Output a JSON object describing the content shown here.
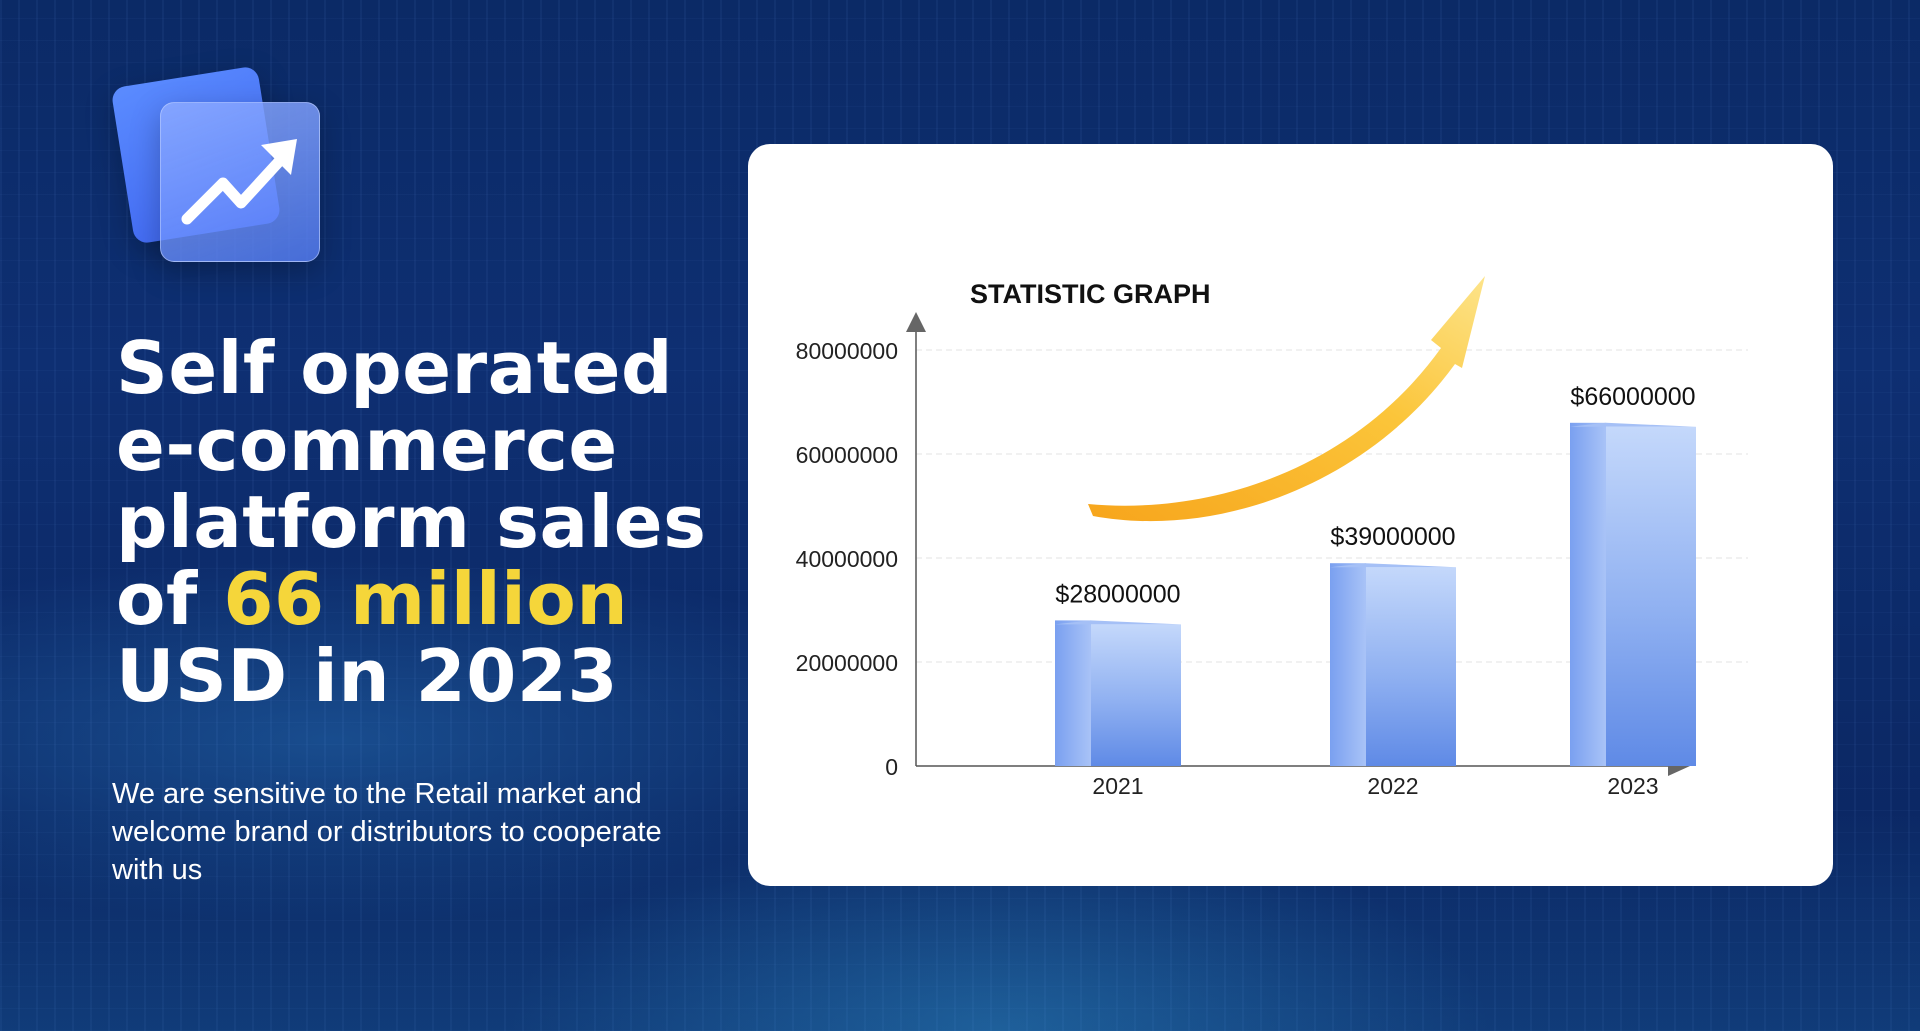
{
  "headline": {
    "line1": "Self operated",
    "line2": "e-commerce",
    "line3": "platform sales",
    "line4_pre": "of ",
    "line4_highlight": "66 million",
    "line5": "USD in 2023"
  },
  "subtext": "We are sensitive to the Retail market and welcome brand or distributors to cooperate with us",
  "logo": {
    "icon": "trending-up-icon"
  },
  "colors": {
    "highlight": "#f5d63a",
    "bar": "#6f98ec",
    "arrow": "#f7b92a"
  },
  "chart_data": {
    "type": "bar",
    "title": "STATISTIC GRAPH",
    "categories": [
      "2021",
      "2022",
      "2023"
    ],
    "values": [
      28000000,
      39000000,
      66000000
    ],
    "data_labels": [
      "$28000000",
      "$39000000",
      "$66000000"
    ],
    "yticks": [
      "0",
      "20000000",
      "40000000",
      "60000000",
      "80000000"
    ],
    "ylim": [
      0,
      80000000
    ],
    "xlabel": "",
    "ylabel": "",
    "grid": true
  }
}
